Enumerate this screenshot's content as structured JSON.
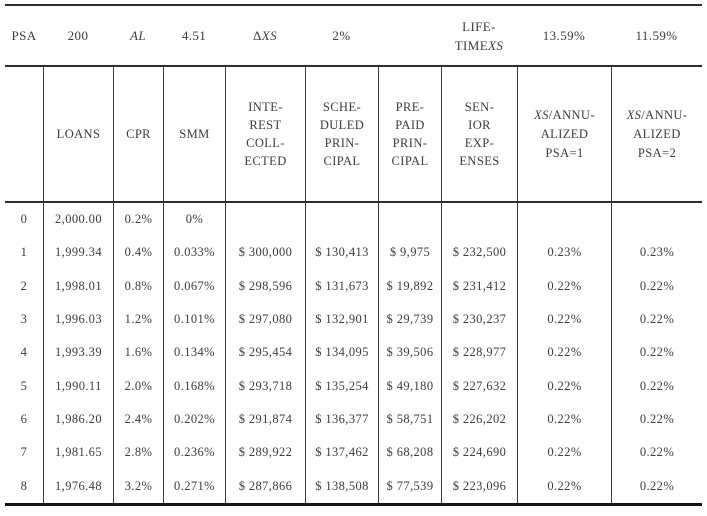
{
  "summary": {
    "psa_label": "PSA",
    "psa_value": "200",
    "al_label": "AL",
    "al_value": "4.51",
    "delta": "Δ",
    "delta_xs": "XS",
    "delta_xs_value": "2%",
    "lifetime_prefix": "LIFE-\nTIME",
    "lifetime_xs": "XS",
    "lifetime_xs_psa1": "13.59%",
    "lifetime_xs_psa2": "11.59%"
  },
  "headers": {
    "loans": "LOANS",
    "cpr": "CPR",
    "smm": "SMM",
    "interest_collected": "INTE-\nREST\nCOLL-\nECTED",
    "scheduled_principal": "SCHE-\nDULED\nPRIN-\nCIPAL",
    "prepaid_principal": "PRE-\nPAID\nPRIN-\nCIPAL",
    "senior_expenses": "SEN-\nIOR\nEXP-\nENSES",
    "xs1_xs": "XS",
    "xs1_rest": "/ANNU-\nALIZED\nPSA=1",
    "xs2_xs": "XS",
    "xs2_rest": "/ANNU-\nALIZED\nPSA=2"
  },
  "rows": [
    {
      "period": "0",
      "loans": "2,000.00",
      "cpr": "0.2%",
      "smm": "0%",
      "interest": "",
      "scheduled": "",
      "prepaid": "",
      "senior": "",
      "xs1": "",
      "xs2": ""
    },
    {
      "period": "1",
      "loans": "1,999.34",
      "cpr": "0.4%",
      "smm": "0.033%",
      "interest": "$ 300,000",
      "scheduled": "$ 130,413",
      "prepaid": "$ 9,975",
      "senior": "$ 232,500",
      "xs1": "0.23%",
      "xs2": "0.23%"
    },
    {
      "period": "2",
      "loans": "1,998.01",
      "cpr": "0.8%",
      "smm": "0.067%",
      "interest": "$ 298,596",
      "scheduled": "$ 131,673",
      "prepaid": "$ 19,892",
      "senior": "$ 231,412",
      "xs1": "0.22%",
      "xs2": "0.22%"
    },
    {
      "period": "3",
      "loans": "1,996.03",
      "cpr": "1.2%",
      "smm": "0.101%",
      "interest": "$ 297,080",
      "scheduled": "$ 132,901",
      "prepaid": "$ 29,739",
      "senior": "$ 230,237",
      "xs1": "0.22%",
      "xs2": "0.22%"
    },
    {
      "period": "4",
      "loans": "1,993.39",
      "cpr": "1.6%",
      "smm": "0.134%",
      "interest": "$ 295,454",
      "scheduled": "$ 134,095",
      "prepaid": "$ 39,506",
      "senior": "$ 228,977",
      "xs1": "0.22%",
      "xs2": "0.22%"
    },
    {
      "period": "5",
      "loans": "1,990.11",
      "cpr": "2.0%",
      "smm": "0.168%",
      "interest": "$ 293,718",
      "scheduled": "$ 135,254",
      "prepaid": "$ 49,180",
      "senior": "$ 227,632",
      "xs1": "0.22%",
      "xs2": "0.22%"
    },
    {
      "period": "6",
      "loans": "1,986.20",
      "cpr": "2.4%",
      "smm": "0.202%",
      "interest": "$ 291,874",
      "scheduled": "$ 136,377",
      "prepaid": "$ 58,751",
      "senior": "$ 226,202",
      "xs1": "0.22%",
      "xs2": "0.22%"
    },
    {
      "period": "7",
      "loans": "1,981.65",
      "cpr": "2.8%",
      "smm": "0.236%",
      "interest": "$ 289,922",
      "scheduled": "$ 137,462",
      "prepaid": "$ 68,208",
      "senior": "$ 224,690",
      "xs1": "0.22%",
      "xs2": "0.22%"
    },
    {
      "period": "8",
      "loans": "1,976.48",
      "cpr": "3.2%",
      "smm": "0.271%",
      "interest": "$ 287,866",
      "scheduled": "$ 138,508",
      "prepaid": "$ 77,539",
      "senior": "$ 223,096",
      "xs1": "0.22%",
      "xs2": "0.22%"
    }
  ]
}
